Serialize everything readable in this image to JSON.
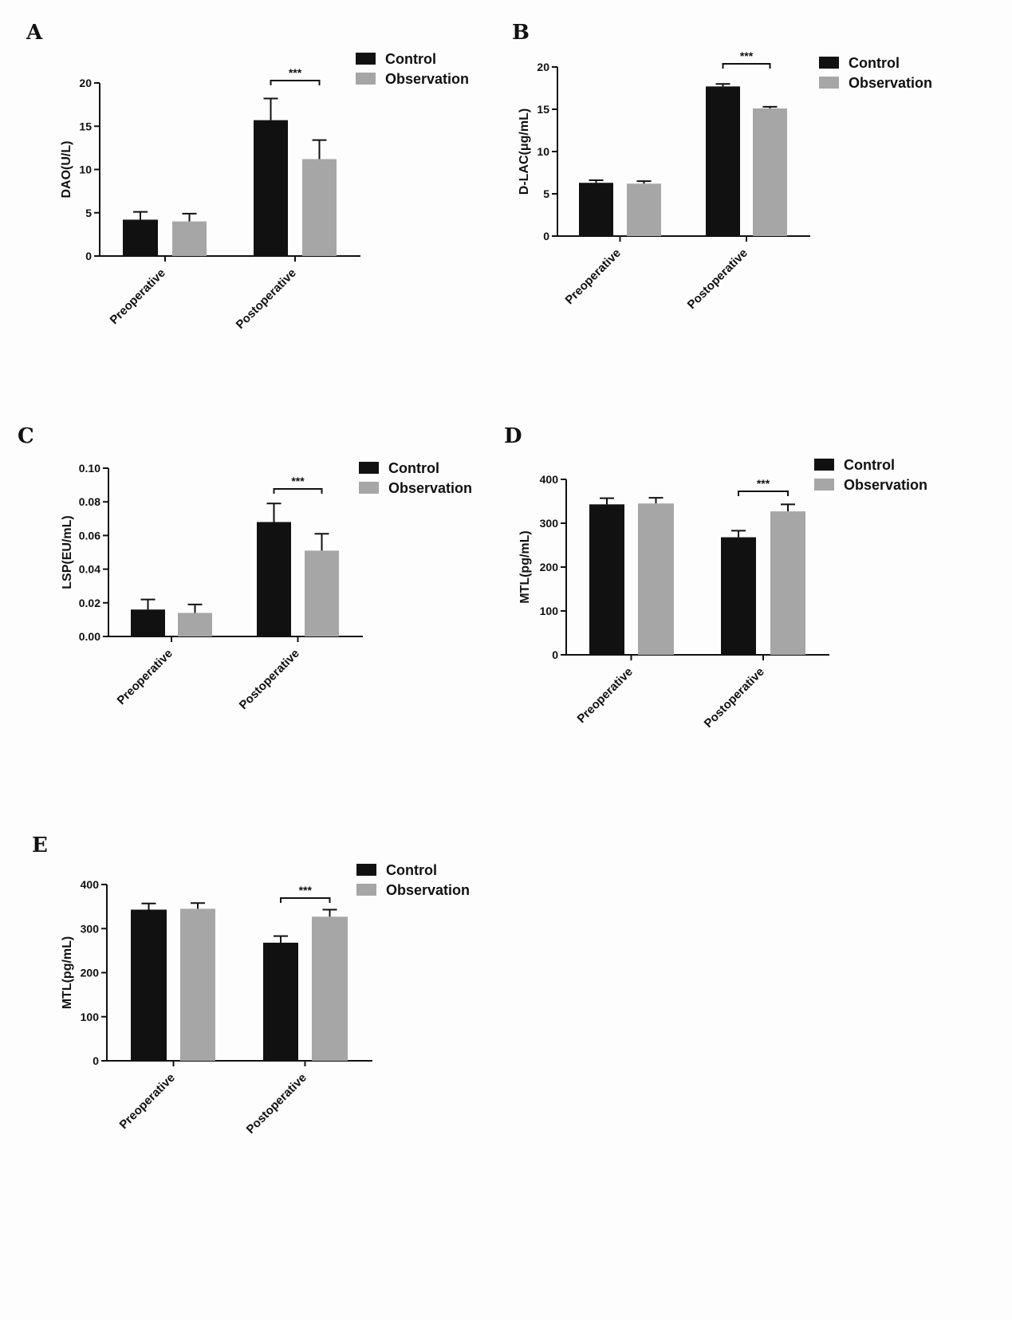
{
  "colors": {
    "control": "#111111",
    "observation": "#a6a6a6",
    "axis": "#111111"
  },
  "chart_data": [
    {
      "id": "A",
      "letter": "A",
      "type": "bar",
      "categories": [
        "Preoperative",
        "Postoperative"
      ],
      "series": [
        {
          "name": "Control",
          "values": [
            4.2,
            15.7
          ],
          "errors": [
            0.9,
            2.5
          ]
        },
        {
          "name": "Observation",
          "values": [
            4.0,
            11.2
          ],
          "errors": [
            0.9,
            2.2
          ]
        }
      ],
      "ylabel": "DAO(U/L)",
      "ylim": [
        0,
        20
      ],
      "yticks": [
        "0",
        "5",
        "10",
        "15",
        "20"
      ],
      "significance": {
        "category": 1,
        "label": "***"
      },
      "legend": "top-right"
    },
    {
      "id": "B",
      "letter": "B",
      "type": "bar",
      "categories": [
        "Preoperative",
        "Postoperative"
      ],
      "series": [
        {
          "name": "Control",
          "values": [
            6.3,
            17.7
          ],
          "errors": [
            0.3,
            0.3
          ]
        },
        {
          "name": "Observation",
          "values": [
            6.2,
            15.1
          ],
          "errors": [
            0.3,
            0.2
          ]
        }
      ],
      "ylabel": "D-LAC(μg/mL)",
      "ylim": [
        0,
        20
      ],
      "yticks": [
        "0",
        "5",
        "10",
        "15",
        "20"
      ],
      "significance": {
        "category": 1,
        "label": "***"
      },
      "legend": "top-right"
    },
    {
      "id": "C",
      "letter": "C",
      "type": "bar",
      "categories": [
        "Preoperative",
        "Postoperative"
      ],
      "series": [
        {
          "name": "Control",
          "values": [
            0.016,
            0.068
          ],
          "errors": [
            0.006,
            0.011
          ]
        },
        {
          "name": "Observation",
          "values": [
            0.014,
            0.051
          ],
          "errors": [
            0.005,
            0.01
          ]
        }
      ],
      "ylabel": "LSP(EU/mL)",
      "ylim": [
        0,
        0.1
      ],
      "yticks": [
        "0.00",
        "0.02",
        "0.04",
        "0.06",
        "0.08",
        "0.10"
      ],
      "significance": {
        "category": 1,
        "label": "***"
      },
      "legend": "top-right"
    },
    {
      "id": "D",
      "letter": "D",
      "type": "bar",
      "categories": [
        "Preoperative",
        "Postoperative"
      ],
      "series": [
        {
          "name": "Control",
          "values": [
            343,
            268
          ],
          "errors": [
            14,
            15
          ]
        },
        {
          "name": "Observation",
          "values": [
            345,
            327
          ],
          "errors": [
            13,
            16
          ]
        }
      ],
      "ylabel": "MTL(pg/mL)",
      "ylim": [
        0,
        400
      ],
      "yticks": [
        "0",
        "100",
        "200",
        "300",
        "400"
      ],
      "significance": {
        "category": 1,
        "label": "***"
      },
      "legend": "top-right"
    },
    {
      "id": "E",
      "letter": "E",
      "type": "bar",
      "categories": [
        "Preoperative",
        "Postoperative"
      ],
      "series": [
        {
          "name": "Control",
          "values": [
            343,
            268
          ],
          "errors": [
            14,
            15
          ]
        },
        {
          "name": "Observation",
          "values": [
            345,
            327
          ],
          "errors": [
            13,
            16
          ]
        }
      ],
      "ylabel": "MTL(pg/mL)",
      "ylim": [
        0,
        400
      ],
      "yticks": [
        "0",
        "100",
        "200",
        "300",
        "400"
      ],
      "significance": {
        "category": 1,
        "label": "***"
      },
      "legend": "top-right"
    }
  ]
}
